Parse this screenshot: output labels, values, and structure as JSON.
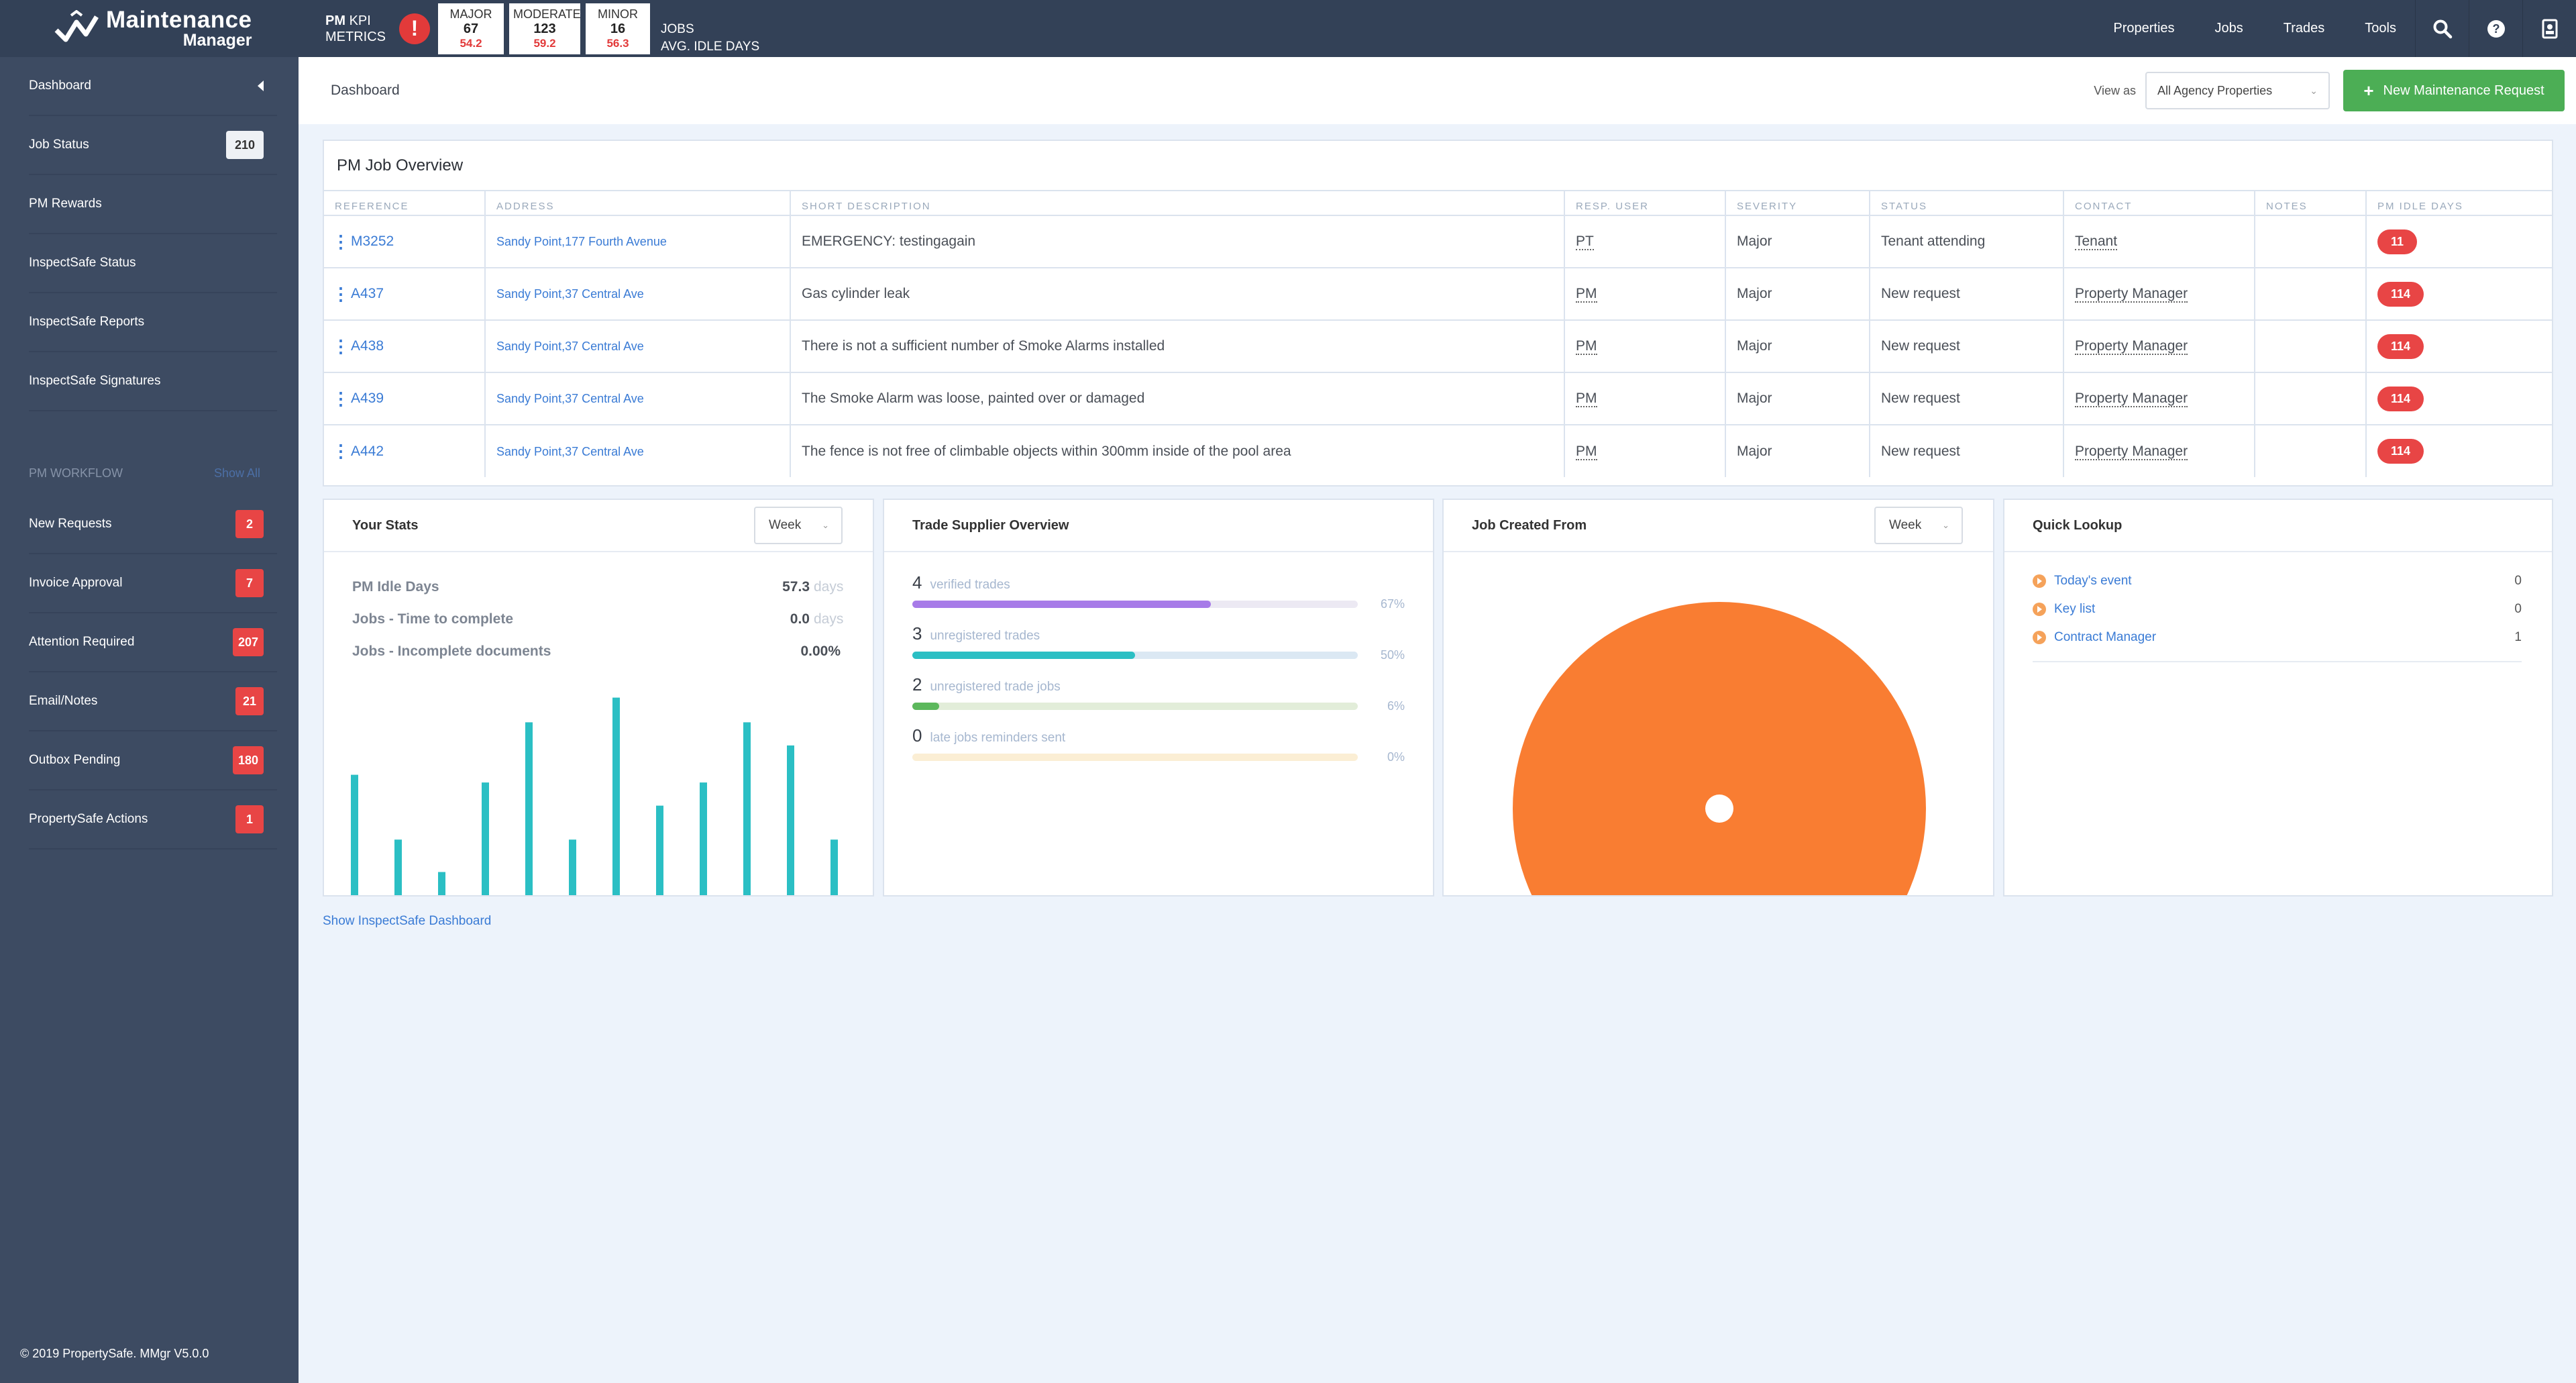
{
  "brand": {
    "line1": "Maintenance",
    "line2": "Manager"
  },
  "kpi": {
    "title_bold": "PM",
    "title_rest": "KPI",
    "title_line2": "METRICS",
    "boxes": [
      {
        "label": "MAJOR",
        "jobs": "67",
        "idle": "54.2"
      },
      {
        "label": "MODERATE",
        "jobs": "123",
        "idle": "59.2"
      },
      {
        "label": "MINOR",
        "jobs": "16",
        "idle": "56.3"
      }
    ],
    "row_label_jobs": "JOBS",
    "row_label_idle": "AVG. IDLE DAYS"
  },
  "topnav": {
    "items": [
      "Properties",
      "Jobs",
      "Trades",
      "Tools"
    ]
  },
  "sidebar": {
    "items": [
      {
        "label": "Dashboard"
      },
      {
        "label": "Job Status",
        "badge": "210"
      },
      {
        "label": "PM Rewards"
      },
      {
        "label": "InspectSafe Status"
      },
      {
        "label": "InspectSafe Reports"
      },
      {
        "label": "InspectSafe Signatures"
      }
    ],
    "workflow_title": "PM WORKFLOW",
    "workflow_show_all": "Show All",
    "workflow": [
      {
        "label": "New Requests",
        "badge": "2"
      },
      {
        "label": "Invoice Approval",
        "badge": "7"
      },
      {
        "label": "Attention Required",
        "badge": "207"
      },
      {
        "label": "Email/Notes",
        "badge": "21"
      },
      {
        "label": "Outbox Pending",
        "badge": "180"
      },
      {
        "label": "PropertySafe Actions",
        "badge": "1"
      }
    ],
    "copyright": "© 2019 PropertySafe. MMgr V5.0.0"
  },
  "header": {
    "breadcrumb": "Dashboard",
    "view_as_label": "View as",
    "view_as_value": "All Agency Properties",
    "new_button": "New Maintenance Request"
  },
  "overview": {
    "title": "PM Job Overview",
    "columns": [
      "REFERENCE",
      "ADDRESS",
      "SHORT DESCRIPTION",
      "RESP. USER",
      "SEVERITY",
      "STATUS",
      "CONTACT",
      "NOTES",
      "PM IDLE DAYS"
    ],
    "rows": [
      {
        "ref": "M3252",
        "address": "Sandy Point,177 Fourth Avenue",
        "desc": "EMERGENCY: testingagain",
        "user": "PT",
        "severity": "Major",
        "status": "Tenant attending",
        "contact": "Tenant",
        "notes": "",
        "idle": "11"
      },
      {
        "ref": "A437",
        "address": "Sandy Point,37 Central Ave",
        "desc": "Gas cylinder leak",
        "user": "PM",
        "severity": "Major",
        "status": "New request",
        "contact": "Property Manager",
        "notes": "",
        "idle": "114"
      },
      {
        "ref": "A438",
        "address": "Sandy Point,37 Central Ave",
        "desc": "There is not a sufficient number of Smoke Alarms installed",
        "user": "PM",
        "severity": "Major",
        "status": "New request",
        "contact": "Property Manager",
        "notes": "",
        "idle": "114"
      },
      {
        "ref": "A439",
        "address": "Sandy Point,37 Central Ave",
        "desc": "The Smoke Alarm was loose, painted over or damaged",
        "user": "PM",
        "severity": "Major",
        "status": "New request",
        "contact": "Property Manager",
        "notes": "",
        "idle": "114"
      },
      {
        "ref": "A442",
        "address": "Sandy Point,37 Central Ave",
        "desc": "The fence is not free of climbable objects within 300mm inside of the pool area",
        "user": "PM",
        "severity": "Major",
        "status": "New request",
        "contact": "Property Manager",
        "notes": "",
        "idle": "114"
      }
    ]
  },
  "your_stats": {
    "title": "Your Stats",
    "period": "Week",
    "stats": [
      {
        "label": "PM Idle Days",
        "value": "57.3",
        "unit": "days"
      },
      {
        "label": "Jobs - Time to complete",
        "value": "0.0",
        "unit": "days"
      },
      {
        "label": "Jobs - Incomplete documents",
        "value": "0.00%",
        "unit": ""
      }
    ],
    "bar_color": "#2bbfc4",
    "bars": [
      0.78,
      0.36,
      0.15,
      0.73,
      1.12,
      0.36,
      1.28,
      0.58,
      0.73,
      1.12,
      0.97,
      0.36
    ]
  },
  "trade_overview": {
    "title": "Trade Supplier Overview",
    "items": [
      {
        "count": "4",
        "label": "verified trades",
        "pct": "67%",
        "fraction": 0.67,
        "color": "#a77be8",
        "track": "#ece9f3"
      },
      {
        "count": "3",
        "label": "unregistered trades",
        "pct": "50%",
        "fraction": 0.5,
        "color": "#2bbfc4",
        "track": "#dbe8f3"
      },
      {
        "count": "2",
        "label": "unregistered trade jobs",
        "pct": "6%",
        "fraction": 0.06,
        "color": "#5cb85c",
        "track": "#e2edd9"
      },
      {
        "count": "0",
        "label": "late jobs reminders sent",
        "pct": "0%",
        "fraction": 0.0,
        "color": "#f5c66b",
        "track": "#fbeed4"
      }
    ]
  },
  "job_created": {
    "title": "Job Created From",
    "period": "Week",
    "pie_color": "#f97d32"
  },
  "quick_lookup": {
    "title": "Quick Lookup",
    "items": [
      {
        "label": "Today's event",
        "count": "0"
      },
      {
        "label": "Key list",
        "count": "0"
      },
      {
        "label": "Contract Manager",
        "count": "1"
      }
    ]
  },
  "footer_link": "Show InspectSafe Dashboard"
}
